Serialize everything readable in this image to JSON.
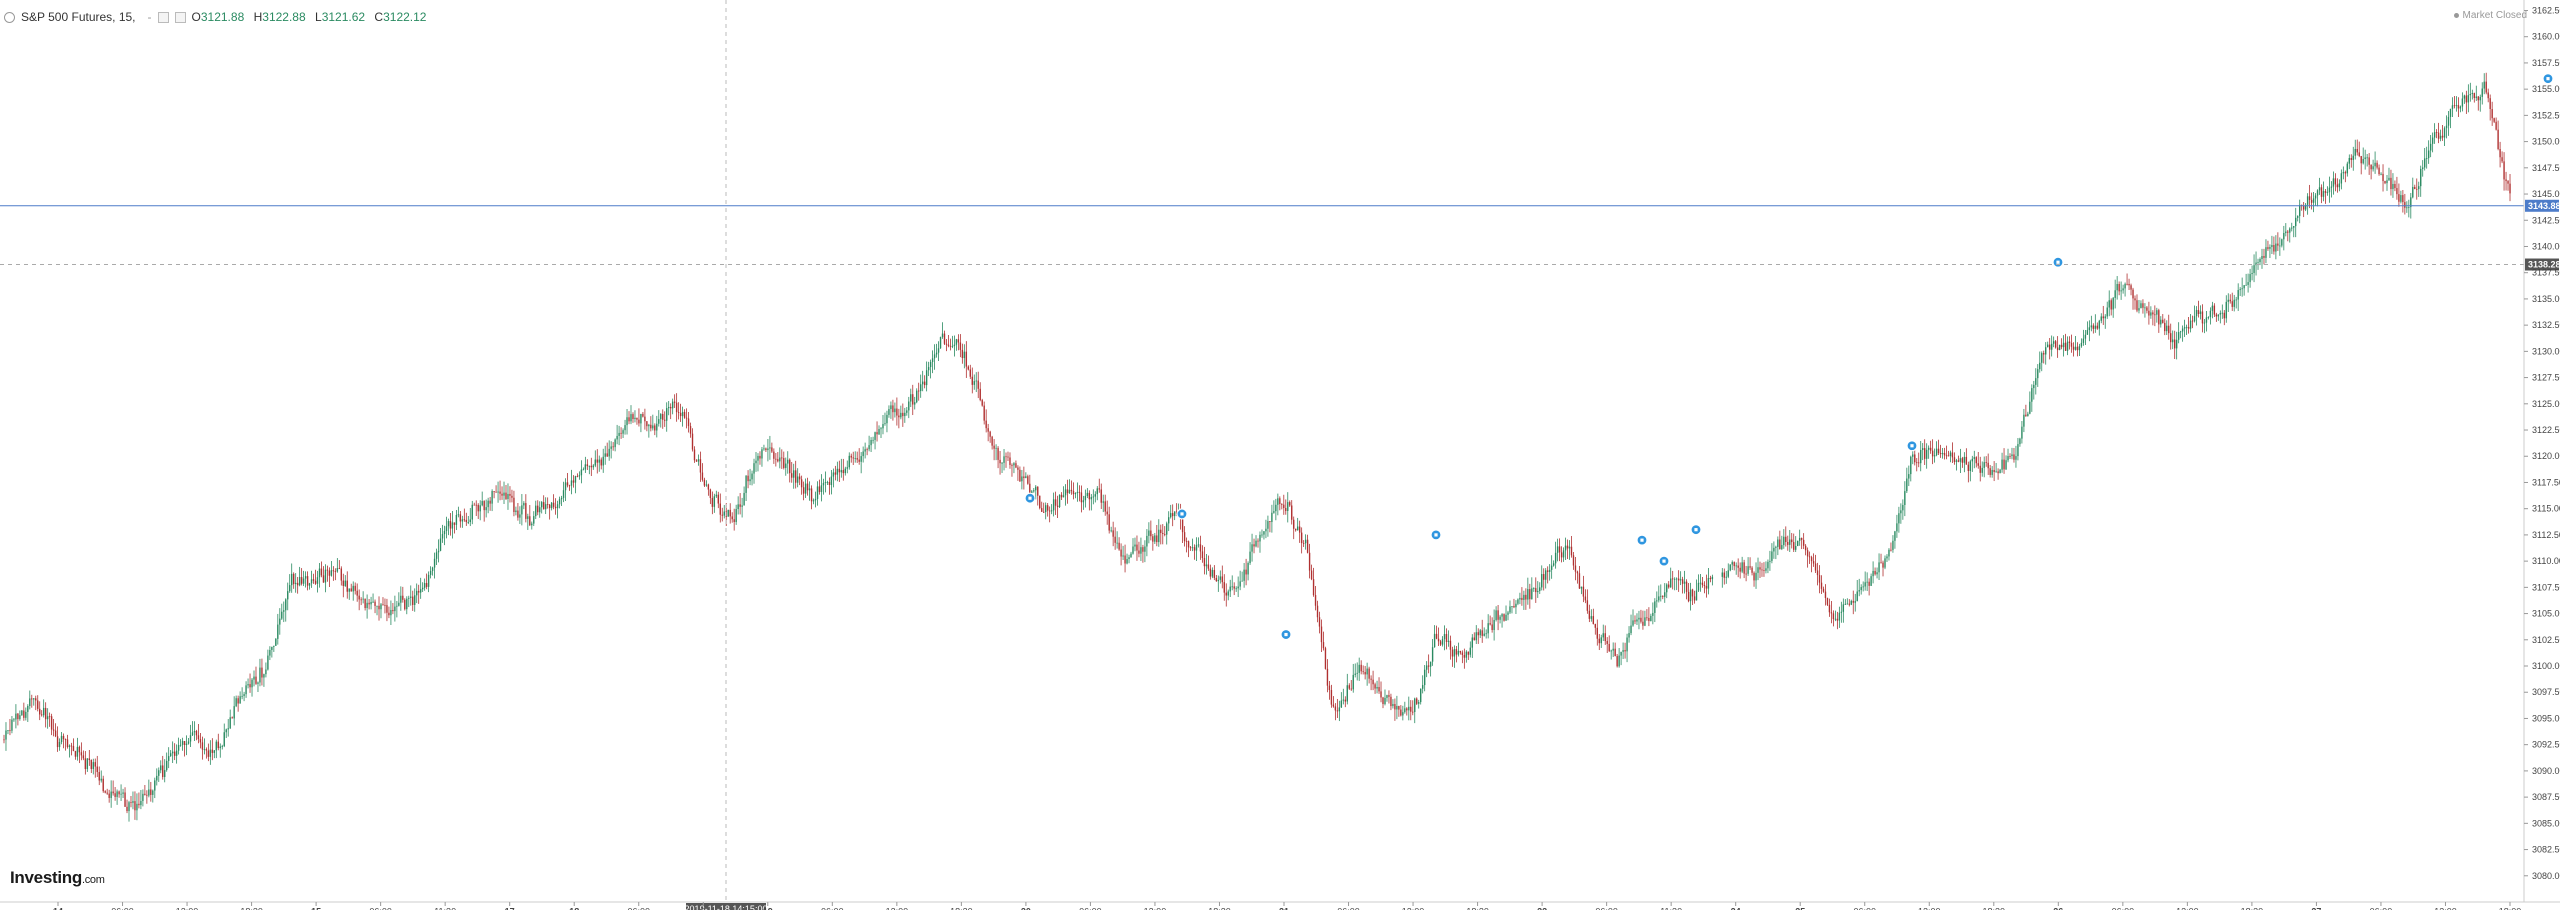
{
  "header": {
    "symbol": "S&P 500 Futures, 15,",
    "dash": "-",
    "open_label": "O",
    "open_value": "3121.88",
    "high_label": "H",
    "high_value": "3122.88",
    "low_label": "L",
    "low_value": "3121.62",
    "close_label": "C",
    "close_value": "3122.12"
  },
  "status": {
    "market_closed": "Market Closed"
  },
  "branding": {
    "logo": "Investing",
    "logo_suffix": ".com"
  },
  "colors": {
    "up": "#2a8a61",
    "down": "#b03030",
    "current_price_line": "#4d7cc9",
    "current_price_tag": "#4d7cc9",
    "prev_close_tag": "#555555",
    "event_marker": "#2f96e0",
    "axis_text": "#444444",
    "crosshair": "#bbbbbb"
  },
  "markers": {
    "current_price": "3143.88",
    "prev_close": "3138.28",
    "crosshair_time": "2019-11-18 14:15:00",
    "event_icon": "event-marker-icon"
  },
  "chart_data": {
    "type": "candlestick",
    "title": "S&P 500 Futures, 15,",
    "ylim": [
      3077.5,
      3163.5
    ],
    "y_ticks": [
      3080.0,
      3082.5,
      3085.0,
      3087.5,
      3090.0,
      3092.5,
      3095.0,
      3097.5,
      3100.0,
      3102.5,
      3105.0,
      3107.5,
      3110.0,
      3112.5,
      3115.0,
      3117.5,
      3120.0,
      3122.5,
      3125.0,
      3127.5,
      3130.0,
      3132.5,
      3135.0,
      3137.5,
      3140.0,
      3142.5,
      3145.0,
      3147.5,
      3150.0,
      3152.5,
      3155.0,
      3157.5,
      3160.0,
      3162.5
    ],
    "x_tick_labels": [
      {
        "label": "14",
        "bold": true
      },
      {
        "label": "06:00",
        "bold": false
      },
      {
        "label": "12:00",
        "bold": false
      },
      {
        "label": "18:30",
        "bold": false
      },
      {
        "label": "15",
        "bold": true
      },
      {
        "label": "06:00",
        "bold": false
      },
      {
        "label": "11:30",
        "bold": false
      },
      {
        "label": "17",
        "bold": true
      },
      {
        "label": "18",
        "bold": true
      },
      {
        "label": "06:00",
        "bold": false
      },
      {
        "label": "0",
        "bold": false
      },
      {
        "label": "19",
        "bold": true
      },
      {
        "label": "06:00",
        "bold": false
      },
      {
        "label": "12:00",
        "bold": false
      },
      {
        "label": "18:30",
        "bold": false
      },
      {
        "label": "20",
        "bold": true
      },
      {
        "label": "06:00",
        "bold": false
      },
      {
        "label": "12:00",
        "bold": false
      },
      {
        "label": "18:30",
        "bold": false
      },
      {
        "label": "21",
        "bold": true
      },
      {
        "label": "06:00",
        "bold": false
      },
      {
        "label": "12:00",
        "bold": false
      },
      {
        "label": "18:30",
        "bold": false
      },
      {
        "label": "22",
        "bold": true
      },
      {
        "label": "06:00",
        "bold": false
      },
      {
        "label": "11:30",
        "bold": false
      },
      {
        "label": "24",
        "bold": true
      },
      {
        "label": "25",
        "bold": true
      },
      {
        "label": "06:00",
        "bold": false
      },
      {
        "label": "12:00",
        "bold": false
      },
      {
        "label": "18:30",
        "bold": false
      },
      {
        "label": "26",
        "bold": true
      },
      {
        "label": "06:00",
        "bold": false
      },
      {
        "label": "12:00",
        "bold": false
      },
      {
        "label": "18:30",
        "bold": false
      },
      {
        "label": "27",
        "bold": true
      },
      {
        "label": "06:00",
        "bold": false
      },
      {
        "label": "12:00",
        "bold": false
      },
      {
        "label": "18:00",
        "bold": false
      }
    ],
    "price_path": [
      3093,
      3097,
      3093,
      3091,
      3088,
      3086,
      3090,
      3093,
      3092,
      3097,
      3100,
      3108,
      3109,
      3108,
      3106,
      3105,
      3107,
      3113,
      3115,
      3117,
      3114,
      3116,
      3118,
      3120,
      3124,
      3123,
      3125,
      3116,
      3114,
      3121,
      3119,
      3116,
      3119,
      3121,
      3124,
      3126,
      3131,
      3129,
      3120,
      3118,
      3115,
      3117,
      3116,
      3110,
      3112,
      3114,
      3110,
      3107,
      3111,
      3116,
      3112,
      3095,
      3100,
      3097,
      3095,
      3103,
      3101,
      3104,
      3106,
      3108,
      3112,
      3104,
      3101,
      3105,
      3108,
      3107,
      3109,
      3109,
      3112,
      3111,
      3104,
      3108,
      3110,
      3120,
      3120,
      3119,
      3119,
      3120,
      3130,
      3131,
      3132,
      3136,
      3134,
      3131,
      3133,
      3134,
      3137,
      3141,
      3144,
      3145,
      3149,
      3147,
      3144,
      3150,
      3154,
      3155,
      3144
    ],
    "events": [
      {
        "price": 3116.0
      },
      {
        "price": 3114.5
      },
      {
        "price": 3103.0
      },
      {
        "price": 3112.5
      },
      {
        "price": 3112.0
      },
      {
        "price": 3110.0
      },
      {
        "price": 3113.0
      },
      {
        "price": 3121.0
      },
      {
        "price": 3138.5
      },
      {
        "price": 3156.0
      }
    ]
  }
}
